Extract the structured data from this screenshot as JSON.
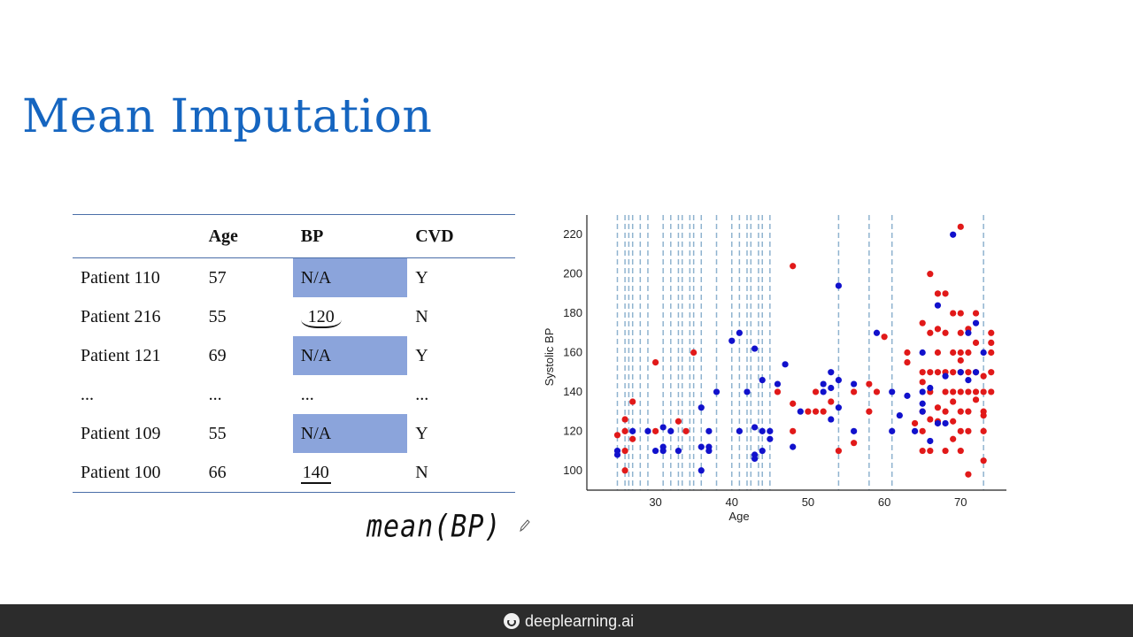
{
  "slide": {
    "title": "Mean Imputation"
  },
  "table": {
    "headers": [
      "",
      "Age",
      "BP",
      "CVD"
    ],
    "rows": [
      {
        "patient": "Patient 110",
        "age": "57",
        "bp": "N/A",
        "cvd": "Y",
        "missing": true
      },
      {
        "patient": "Patient 216",
        "age": "55",
        "bp": "120",
        "cvd": "N",
        "missing": false
      },
      {
        "patient": "Patient 121",
        "age": "69",
        "bp": "N/A",
        "cvd": "Y",
        "missing": true
      },
      {
        "patient": "...",
        "age": "...",
        "bp": "...",
        "cvd": "...",
        "missing": false
      },
      {
        "patient": "Patient 109",
        "age": "55",
        "bp": "N/A",
        "cvd": "Y",
        "missing": true
      },
      {
        "patient": "Patient 100",
        "age": "66",
        "bp": "140",
        "cvd": "N",
        "missing": false
      }
    ],
    "highlight_color": "#8ba4db"
  },
  "annotation": {
    "text": "mean(BP)"
  },
  "footer": {
    "brand": "deeplearning.ai",
    "brand_icon": "deeplearning-logo-icon"
  },
  "chart_data": {
    "type": "scatter",
    "xlabel": "Age",
    "ylabel": "Systolic BP",
    "xlim": [
      21,
      76
    ],
    "ylim": [
      90,
      230
    ],
    "xticks": [
      30,
      40,
      50,
      60,
      70
    ],
    "yticks": [
      100,
      120,
      140,
      160,
      180,
      200,
      220
    ],
    "colors": {
      "red": "#e11919",
      "blue": "#1111cc",
      "dashed": "#8fb3cf"
    },
    "missing_age_lines": [
      25,
      26,
      26.5,
      27,
      28,
      29,
      31,
      32,
      33,
      33.5,
      34.5,
      35,
      36,
      38,
      40,
      41,
      42,
      42.5,
      43.5,
      44,
      45,
      54,
      58,
      61,
      73
    ],
    "series": [
      {
        "color": "red",
        "points": [
          [
            25,
            118
          ],
          [
            26,
            126
          ],
          [
            26,
            120
          ],
          [
            26,
            110
          ],
          [
            26,
            100
          ],
          [
            27,
            135
          ],
          [
            27,
            116
          ],
          [
            30,
            120
          ],
          [
            30,
            155
          ],
          [
            33,
            125
          ],
          [
            34,
            120
          ],
          [
            35,
            160
          ],
          [
            46,
            140
          ],
          [
            48,
            204
          ],
          [
            48,
            134
          ],
          [
            48,
            120
          ],
          [
            50,
            130
          ],
          [
            51,
            130
          ],
          [
            51,
            140
          ],
          [
            52,
            130
          ],
          [
            53,
            135
          ],
          [
            54,
            110
          ],
          [
            56,
            140
          ],
          [
            56,
            114
          ],
          [
            58,
            130
          ],
          [
            58,
            144
          ],
          [
            59,
            140
          ],
          [
            60,
            168
          ],
          [
            63,
            160
          ],
          [
            63,
            155
          ],
          [
            64,
            124
          ],
          [
            65,
            175
          ],
          [
            65,
            150
          ],
          [
            65,
            145
          ],
          [
            65,
            130
          ],
          [
            65,
            120
          ],
          [
            65,
            110
          ],
          [
            66,
            200
          ],
          [
            66,
            170
          ],
          [
            66,
            150
          ],
          [
            66,
            140
          ],
          [
            66,
            126
          ],
          [
            66,
            110
          ],
          [
            67,
            190
          ],
          [
            67,
            172
          ],
          [
            67,
            160
          ],
          [
            67,
            150
          ],
          [
            67,
            132
          ],
          [
            67,
            125
          ],
          [
            68,
            190
          ],
          [
            68,
            170
          ],
          [
            68,
            150
          ],
          [
            68,
            140
          ],
          [
            68,
            130
          ],
          [
            68,
            110
          ],
          [
            69,
            180
          ],
          [
            69,
            160
          ],
          [
            69,
            150
          ],
          [
            69,
            140
          ],
          [
            69,
            135
          ],
          [
            69,
            125
          ],
          [
            69,
            116
          ],
          [
            70,
            224
          ],
          [
            70,
            180
          ],
          [
            70,
            170
          ],
          [
            70,
            160
          ],
          [
            70,
            156
          ],
          [
            70,
            150
          ],
          [
            70,
            140
          ],
          [
            70,
            130
          ],
          [
            70,
            120
          ],
          [
            70,
            110
          ],
          [
            71,
            172
          ],
          [
            71,
            160
          ],
          [
            71,
            150
          ],
          [
            71,
            140
          ],
          [
            71,
            130
          ],
          [
            71,
            120
          ],
          [
            71,
            98
          ],
          [
            72,
            180
          ],
          [
            72,
            165
          ],
          [
            72,
            150
          ],
          [
            72,
            140
          ],
          [
            72,
            136
          ],
          [
            73,
            148
          ],
          [
            73,
            140
          ],
          [
            73,
            130
          ],
          [
            73,
            128
          ],
          [
            73,
            120
          ],
          [
            73,
            105
          ],
          [
            74,
            170
          ],
          [
            74,
            165
          ],
          [
            74,
            160
          ],
          [
            74,
            150
          ],
          [
            74,
            140
          ]
        ]
      },
      {
        "color": "blue",
        "points": [
          [
            25,
            110
          ],
          [
            25,
            108
          ],
          [
            27,
            120
          ],
          [
            29,
            120
          ],
          [
            30,
            110
          ],
          [
            31,
            112
          ],
          [
            31,
            110
          ],
          [
            31,
            122
          ],
          [
            32,
            120
          ],
          [
            33,
            110
          ],
          [
            36,
            132
          ],
          [
            36,
            100
          ],
          [
            36,
            112
          ],
          [
            37,
            120
          ],
          [
            37,
            112
          ],
          [
            37,
            110
          ],
          [
            38,
            140
          ],
          [
            40,
            166
          ],
          [
            41,
            170
          ],
          [
            41,
            120
          ],
          [
            42,
            140
          ],
          [
            43,
            162
          ],
          [
            43,
            122
          ],
          [
            43,
            108
          ],
          [
            43,
            106
          ],
          [
            44,
            146
          ],
          [
            44,
            120
          ],
          [
            44,
            110
          ],
          [
            45,
            116
          ],
          [
            45,
            120
          ],
          [
            46,
            144
          ],
          [
            47,
            154
          ],
          [
            48,
            112
          ],
          [
            49,
            130
          ],
          [
            52,
            144
          ],
          [
            52,
            140
          ],
          [
            53,
            150
          ],
          [
            53,
            142
          ],
          [
            53,
            126
          ],
          [
            54,
            194
          ],
          [
            54,
            146
          ],
          [
            54,
            132
          ],
          [
            56,
            144
          ],
          [
            56,
            120
          ],
          [
            59,
            170
          ],
          [
            61,
            140
          ],
          [
            61,
            120
          ],
          [
            62,
            128
          ],
          [
            63,
            138
          ],
          [
            64,
            120
          ],
          [
            65,
            160
          ],
          [
            65,
            140
          ],
          [
            65,
            134
          ],
          [
            65,
            130
          ],
          [
            66,
            142
          ],
          [
            66,
            115
          ],
          [
            67,
            184
          ],
          [
            67,
            124
          ],
          [
            68,
            148
          ],
          [
            68,
            124
          ],
          [
            69,
            220
          ],
          [
            70,
            150
          ],
          [
            71,
            170
          ],
          [
            71,
            146
          ],
          [
            72,
            175
          ],
          [
            72,
            150
          ],
          [
            73,
            160
          ]
        ]
      }
    ]
  }
}
